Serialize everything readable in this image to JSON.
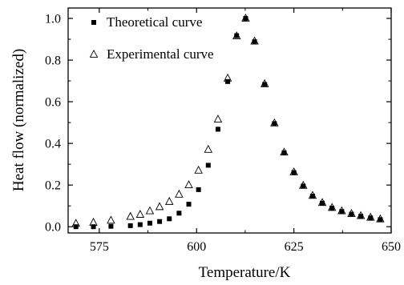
{
  "chart_data": {
    "type": "scatter",
    "title": "",
    "xlabel": "Temperature/K",
    "ylabel": "Heat flow (normalized)",
    "xlim": [
      567,
      650
    ],
    "ylim": [
      -0.03,
      1.05
    ],
    "x_ticks": [
      575,
      600,
      625,
      650
    ],
    "y_ticks": [
      0.0,
      0.2,
      0.4,
      0.6,
      0.8,
      1.0
    ],
    "x_tick_labels": [
      "575",
      "600",
      "625",
      "650"
    ],
    "y_tick_labels": [
      "0.0",
      "0.2",
      "0.4",
      "0.6",
      "0.8",
      "1.0"
    ],
    "grid": false,
    "legend_position": "top-left",
    "series": [
      {
        "name": "Theoretical curve",
        "marker": "filled-square",
        "color": "#000000",
        "points": [
          [
            569,
            0.0
          ],
          [
            573.5,
            0.0
          ],
          [
            578,
            0.002
          ],
          [
            583,
            0.005
          ],
          [
            585.5,
            0.01
          ],
          [
            588,
            0.017
          ],
          [
            590.5,
            0.025
          ],
          [
            593,
            0.038
          ],
          [
            595.5,
            0.065
          ],
          [
            598,
            0.108
          ],
          [
            600.5,
            0.178
          ],
          [
            603,
            0.295
          ],
          [
            605.5,
            0.468
          ],
          [
            608,
            0.697
          ],
          [
            610.3,
            0.917
          ],
          [
            612.6,
            1.0
          ],
          [
            614.9,
            0.888
          ],
          [
            617.5,
            0.683
          ],
          [
            620,
            0.495
          ],
          [
            622.5,
            0.355
          ],
          [
            625,
            0.26
          ],
          [
            627.4,
            0.195
          ],
          [
            629.8,
            0.147
          ],
          [
            632.3,
            0.113
          ],
          [
            634.8,
            0.089
          ],
          [
            637.3,
            0.073
          ],
          [
            639.8,
            0.06
          ],
          [
            642.2,
            0.05
          ],
          [
            644.7,
            0.042
          ],
          [
            647.2,
            0.034
          ]
        ]
      },
      {
        "name": "Experimental curve",
        "marker": "open-triangle",
        "color": "#000000",
        "points": [
          [
            569,
            0.015
          ],
          [
            573.5,
            0.02
          ],
          [
            578,
            0.03
          ],
          [
            583,
            0.048
          ],
          [
            585.5,
            0.058
          ],
          [
            588,
            0.075
          ],
          [
            590.5,
            0.095
          ],
          [
            593,
            0.12
          ],
          [
            595.5,
            0.155
          ],
          [
            598,
            0.2
          ],
          [
            600.5,
            0.27
          ],
          [
            603,
            0.37
          ],
          [
            605.5,
            0.515
          ],
          [
            608,
            0.712
          ],
          [
            610.3,
            0.915
          ],
          [
            612.6,
            1.0
          ],
          [
            614.9,
            0.89
          ],
          [
            617.5,
            0.685
          ],
          [
            620,
            0.497
          ],
          [
            622.5,
            0.357
          ],
          [
            625,
            0.262
          ],
          [
            627.4,
            0.197
          ],
          [
            629.8,
            0.149
          ],
          [
            632.3,
            0.115
          ],
          [
            634.8,
            0.091
          ],
          [
            637.3,
            0.075
          ],
          [
            639.8,
            0.062
          ],
          [
            642.2,
            0.052
          ],
          [
            644.7,
            0.044
          ],
          [
            647.2,
            0.036
          ]
        ]
      }
    ]
  }
}
